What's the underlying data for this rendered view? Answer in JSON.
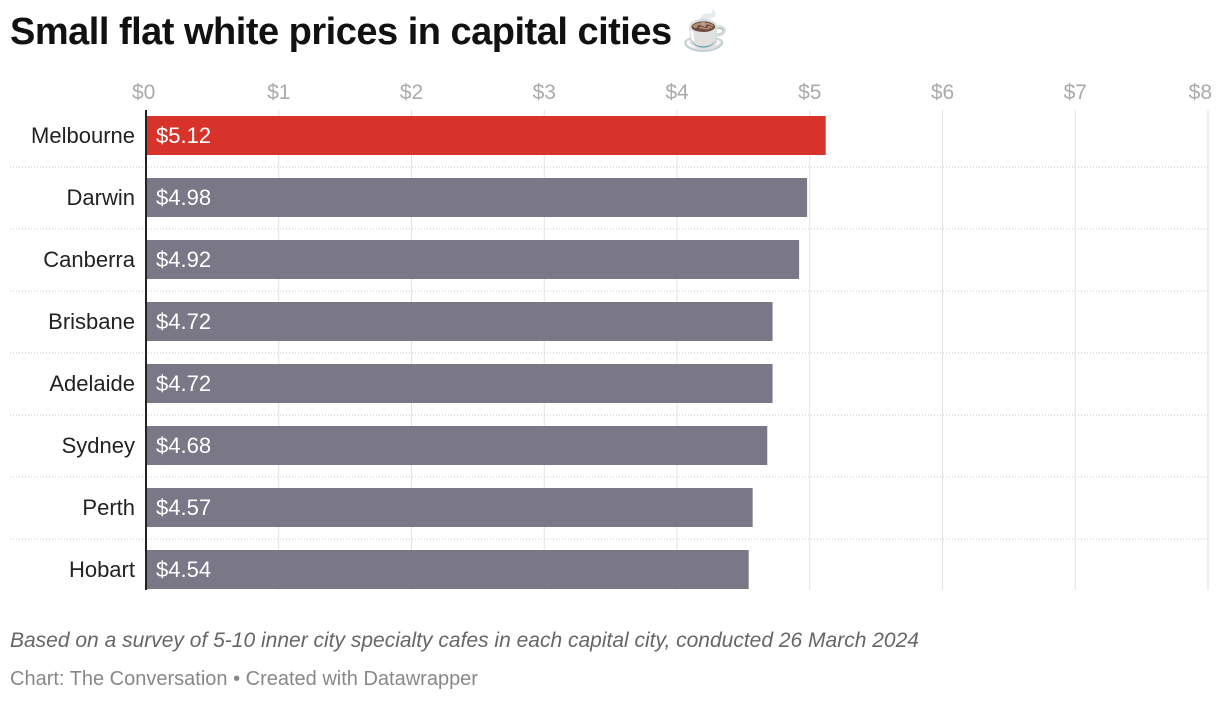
{
  "chart_data": {
    "type": "bar",
    "orientation": "horizontal",
    "title": "Small flat white prices in capital cities ☕",
    "categories": [
      "Melbourne",
      "Darwin",
      "Canberra",
      "Brisbane",
      "Adelaide",
      "Sydney",
      "Perth",
      "Hobart"
    ],
    "values": [
      5.12,
      4.98,
      4.92,
      4.72,
      4.72,
      4.68,
      4.57,
      4.54
    ],
    "value_labels": [
      "$5.12",
      "$4.98",
      "$4.92",
      "$4.72",
      "$4.72",
      "$4.68",
      "$4.57",
      "$4.54"
    ],
    "xlim": [
      0,
      8
    ],
    "ticks": [
      0,
      1,
      2,
      3,
      4,
      5,
      6,
      7,
      8
    ],
    "tick_labels": [
      "$0",
      "$1",
      "$2",
      "$3",
      "$4",
      "$5",
      "$6",
      "$7",
      "$8"
    ],
    "tick_position": "top",
    "grid": true,
    "highlight_category": "Melbourne",
    "colors": {
      "highlight": "#d8332a",
      "default": "#7a7887",
      "grid": "#e2e2e2",
      "tick_text": "#aaaaaa"
    },
    "notes": "Based on a survey of 5-10 inner city specialty cafes in each capital city, conducted 26 March 2024",
    "byline": "Chart: The Conversation • Created with Datawrapper"
  }
}
